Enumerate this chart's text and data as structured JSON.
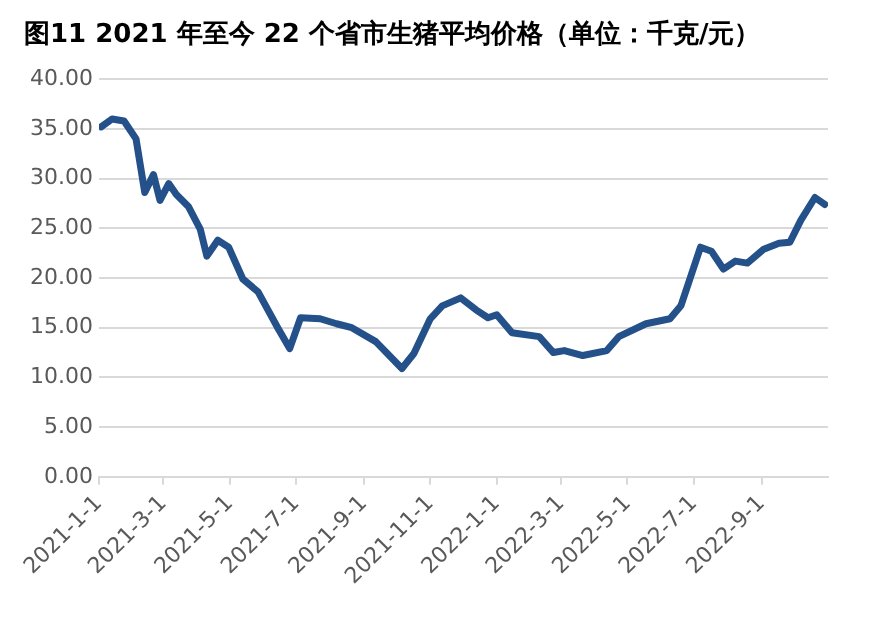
{
  "chart_data": {
    "type": "line",
    "title": "图11 2021 年至今 22 个省市生猪平均价格（单位：千克/元）",
    "x": [
      "2021-01-03",
      "2021-01-13",
      "2021-01-24",
      "2021-02-04",
      "2021-02-12",
      "2021-02-20",
      "2021-02-26",
      "2021-03-06",
      "2021-03-13",
      "2021-03-24",
      "2021-04-04",
      "2021-04-10",
      "2021-04-20",
      "2021-04-30",
      "2021-05-13",
      "2021-05-27",
      "2021-06-14",
      "2021-06-25",
      "2021-07-05",
      "2021-07-23",
      "2021-08-07",
      "2021-08-21",
      "2021-09-12",
      "2021-10-06",
      "2021-10-17",
      "2021-11-01",
      "2021-11-12",
      "2021-11-29",
      "2021-12-13",
      "2021-12-24",
      "2022-01-01",
      "2022-01-15",
      "2022-02-09",
      "2022-02-22",
      "2022-03-04",
      "2022-03-21",
      "2022-04-12",
      "2022-04-23",
      "2022-05-18",
      "2022-06-09",
      "2022-06-19",
      "2022-07-07",
      "2022-07-17",
      "2022-07-28",
      "2022-08-08",
      "2022-08-19",
      "2022-09-03",
      "2022-09-17",
      "2022-09-27",
      "2022-10-07",
      "2022-10-20",
      "2022-10-29"
    ],
    "series": [
      {
        "color": "#245189",
        "values": [
          35.2,
          36.0,
          35.8,
          34.0,
          28.6,
          30.4,
          27.8,
          29.5,
          28.4,
          27.2,
          24.9,
          22.2,
          23.8,
          23.1,
          19.9,
          18.6,
          15.0,
          12.9,
          16.0,
          15.9,
          15.4,
          15.0,
          13.6,
          10.9,
          12.4,
          15.9,
          17.2,
          18.0,
          16.8,
          16.0,
          16.3,
          14.5,
          14.1,
          12.5,
          12.7,
          12.2,
          12.7,
          14.1,
          15.4,
          15.9,
          17.2,
          23.1,
          22.7,
          20.9,
          21.7,
          21.5,
          22.9,
          23.5,
          23.6,
          25.8,
          28.1,
          27.4
        ]
      }
    ],
    "xlim": [
      "2021-01-01",
      "2022-11-01"
    ],
    "xticks": [
      {
        "value": "2021-01-01",
        "label": "2021-1-1"
      },
      {
        "value": "2021-03-01",
        "label": "2021-3-1"
      },
      {
        "value": "2021-05-01",
        "label": "2021-5-1"
      },
      {
        "value": "2021-07-01",
        "label": "2021-7-1"
      },
      {
        "value": "2021-09-01",
        "label": "2021-9-1"
      },
      {
        "value": "2021-11-01",
        "label": "2021-11-1"
      },
      {
        "value": "2022-01-01",
        "label": "2022-1-1"
      },
      {
        "value": "2022-03-01",
        "label": "2022-3-1"
      },
      {
        "value": "2022-05-01",
        "label": "2022-5-1"
      },
      {
        "value": "2022-07-01",
        "label": "2022-7-1"
      },
      {
        "value": "2022-09-01",
        "label": "2022-9-1"
      }
    ],
    "ylim": [
      0,
      40
    ],
    "yticks": [
      {
        "value": 0,
        "label": "0.00"
      },
      {
        "value": 5,
        "label": "5.00"
      },
      {
        "value": 10,
        "label": "10.00"
      },
      {
        "value": 15,
        "label": "15.00"
      },
      {
        "value": 20,
        "label": "20.00"
      },
      {
        "value": 25,
        "label": "25.00"
      },
      {
        "value": 30,
        "label": "30.00"
      },
      {
        "value": 35,
        "label": "35.00"
      },
      {
        "value": 40,
        "label": "40.00"
      }
    ],
    "grid": "y",
    "marker": "none",
    "line_style": "solid",
    "legend": false
  }
}
